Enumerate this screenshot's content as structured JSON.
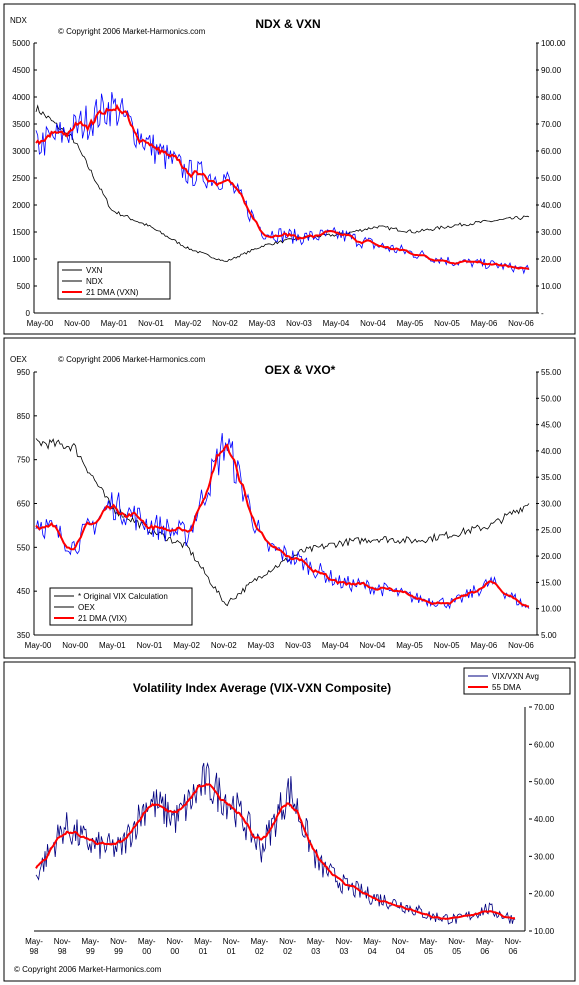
{
  "colors": {
    "black": "#000000",
    "blue": "#0000ff",
    "red": "#ff0000",
    "white": "#ffffff"
  },
  "panels": [
    {
      "key": "ndx",
      "title": "NDX & VXN",
      "copyright": "© Copyright 2006 Market-Harmonics.com",
      "left_axis_label": "NDX",
      "right_axis_label": "",
      "xticks": [
        "May-00",
        "Nov-00",
        "May-01",
        "Nov-01",
        "May-02",
        "Nov-02",
        "May-03",
        "Nov-03",
        "May-04",
        "Nov-04",
        "May-05",
        "Nov-05",
        "May-06",
        "Nov-06"
      ],
      "left_ticks": [
        "5000",
        "4500",
        "4000",
        "3500",
        "3000",
        "2500",
        "2000",
        "1500",
        "1000",
        "500",
        "0"
      ],
      "right_ticks": [
        "100.00",
        "90.00",
        "80.00",
        "70.00",
        "60.00",
        "50.00",
        "40.00",
        "30.00",
        "20.00",
        "10.00",
        "-"
      ],
      "legend": [
        "VXN",
        "NDX",
        "21 DMA (VXN)"
      ]
    },
    {
      "key": "oex",
      "title": "OEX & VXO*",
      "copyright": "© Copyright 2006 Market-Harmonics.com",
      "left_axis_label": "OEX",
      "right_axis_label": "",
      "xticks": [
        "May-00",
        "Nov-00",
        "May-01",
        "Nov-01",
        "May-02",
        "Nov-02",
        "May-03",
        "Nov-03",
        "May-04",
        "Nov-04",
        "May-05",
        "Nov-05",
        "May-06",
        "Nov-06"
      ],
      "left_ticks": [
        "950",
        "850",
        "750",
        "650",
        "550",
        "450",
        "350"
      ],
      "right_ticks": [
        "55.00",
        "50.00",
        "45.00",
        "40.00",
        "35.00",
        "30.00",
        "25.00",
        "20.00",
        "15.00",
        "10.00",
        "5.00"
      ],
      "legend": [
        "* Original VIX Calculation",
        "OEX",
        "21 DMA (VIX)"
      ]
    },
    {
      "key": "avg",
      "title": "Volatility Index Average (VIX-VXN Composite)",
      "copyright": "© Copyright 2006 Market-Harmonics.com",
      "right_ticks": [
        "70.00",
        "60.00",
        "50.00",
        "40.00",
        "30.00",
        "20.00",
        "10.00"
      ],
      "xticks_top": [
        "May-",
        "Nov-",
        "May-",
        "Nov-",
        "May-",
        "Nov-",
        "May-",
        "Nov-",
        "May-",
        "Nov-",
        "May-",
        "Nov-",
        "May-",
        "Nov-",
        "May-",
        "Nov-",
        "May-",
        "Nov-"
      ],
      "xticks_bottom": [
        "98",
        "98",
        "99",
        "99",
        "00",
        "00",
        "01",
        "01",
        "02",
        "02",
        "03",
        "03",
        "04",
        "04",
        "05",
        "05",
        "06",
        "06"
      ],
      "legend": [
        "VIX/VXN Avg",
        "55 DMA"
      ]
    }
  ],
  "chart_data": [
    {
      "type": "line",
      "title": "NDX & VXN",
      "x": [
        "May-00",
        "Nov-00",
        "May-01",
        "Nov-01",
        "May-02",
        "Nov-02",
        "May-03",
        "Nov-03",
        "May-04",
        "Nov-04",
        "May-05",
        "Nov-05",
        "May-06",
        "Nov-06"
      ],
      "left_axis": {
        "label": "NDX",
        "range": [
          0,
          5000
        ]
      },
      "right_axis": {
        "label": "",
        "range": [
          0,
          100
        ]
      },
      "series": [
        {
          "name": "VXN",
          "axis": "right",
          "values": [
            62,
            68,
            77,
            62,
            52,
            50,
            30,
            28,
            29,
            25,
            22,
            19,
            18,
            16
          ]
        },
        {
          "name": "NDX",
          "axis": "left",
          "values": [
            3800,
            3200,
            1900,
            1600,
            1200,
            950,
            1250,
            1400,
            1450,
            1600,
            1500,
            1620,
            1700,
            1780
          ]
        },
        {
          "name": "21 DMA (VXN)",
          "axis": "right",
          "values": [
            64,
            72,
            75,
            60,
            54,
            50,
            31,
            28,
            27,
            24,
            21,
            18,
            22,
            16
          ]
        }
      ],
      "grid": false,
      "legend": "bottom-left"
    },
    {
      "type": "line",
      "title": "OEX & VXO*",
      "x": [
        "May-00",
        "Nov-00",
        "May-01",
        "Nov-01",
        "May-02",
        "Nov-02",
        "May-03",
        "Nov-03",
        "May-04",
        "Nov-04",
        "May-05",
        "Nov-05",
        "May-06",
        "Nov-06"
      ],
      "left_axis": {
        "label": "OEX",
        "range": [
          350,
          950
        ]
      },
      "right_axis": {
        "label": "",
        "range": [
          5,
          55
        ]
      },
      "series": [
        {
          "name": "* Original VIX Calculation",
          "axis": "right",
          "values": [
            27,
            22,
            30,
            26,
            24,
            42,
            22,
            19,
            15,
            14,
            12,
            11,
            15,
            10
          ]
        },
        {
          "name": "OEX",
          "axis": "left",
          "values": [
            790,
            780,
            640,
            590,
            550,
            420,
            490,
            540,
            560,
            570,
            565,
            580,
            600,
            650
          ]
        },
        {
          "name": "21 DMA (VIX)",
          "axis": "right",
          "values": [
            27,
            21,
            29,
            25,
            23,
            40,
            22,
            18,
            15,
            14,
            12,
            12,
            16,
            11
          ]
        }
      ],
      "grid": false,
      "legend": "bottom-left"
    },
    {
      "type": "line",
      "title": "Volatility Index Average (VIX-VXN Composite)",
      "x": [
        "May-98",
        "Nov-98",
        "May-99",
        "Nov-99",
        "May-00",
        "Nov-00",
        "May-01",
        "Nov-01",
        "May-02",
        "Nov-02",
        "May-03",
        "Nov-03",
        "May-04",
        "Nov-04",
        "May-05",
        "Nov-05",
        "May-06",
        "Nov-06"
      ],
      "right_axis": {
        "range": [
          10,
          70
        ]
      },
      "series": [
        {
          "name": "VIX/VXN Avg",
          "values": [
            25,
            38,
            33,
            32,
            45,
            40,
            50,
            44,
            32,
            48,
            28,
            22,
            19,
            17,
            14,
            13,
            16,
            13
          ]
        },
        {
          "name": "55 DMA",
          "values": [
            25,
            37,
            34,
            32,
            46,
            42,
            50,
            46,
            33,
            48,
            28,
            22,
            20,
            18,
            15,
            13,
            15,
            14
          ]
        }
      ],
      "grid": false,
      "legend": "top-right"
    }
  ]
}
